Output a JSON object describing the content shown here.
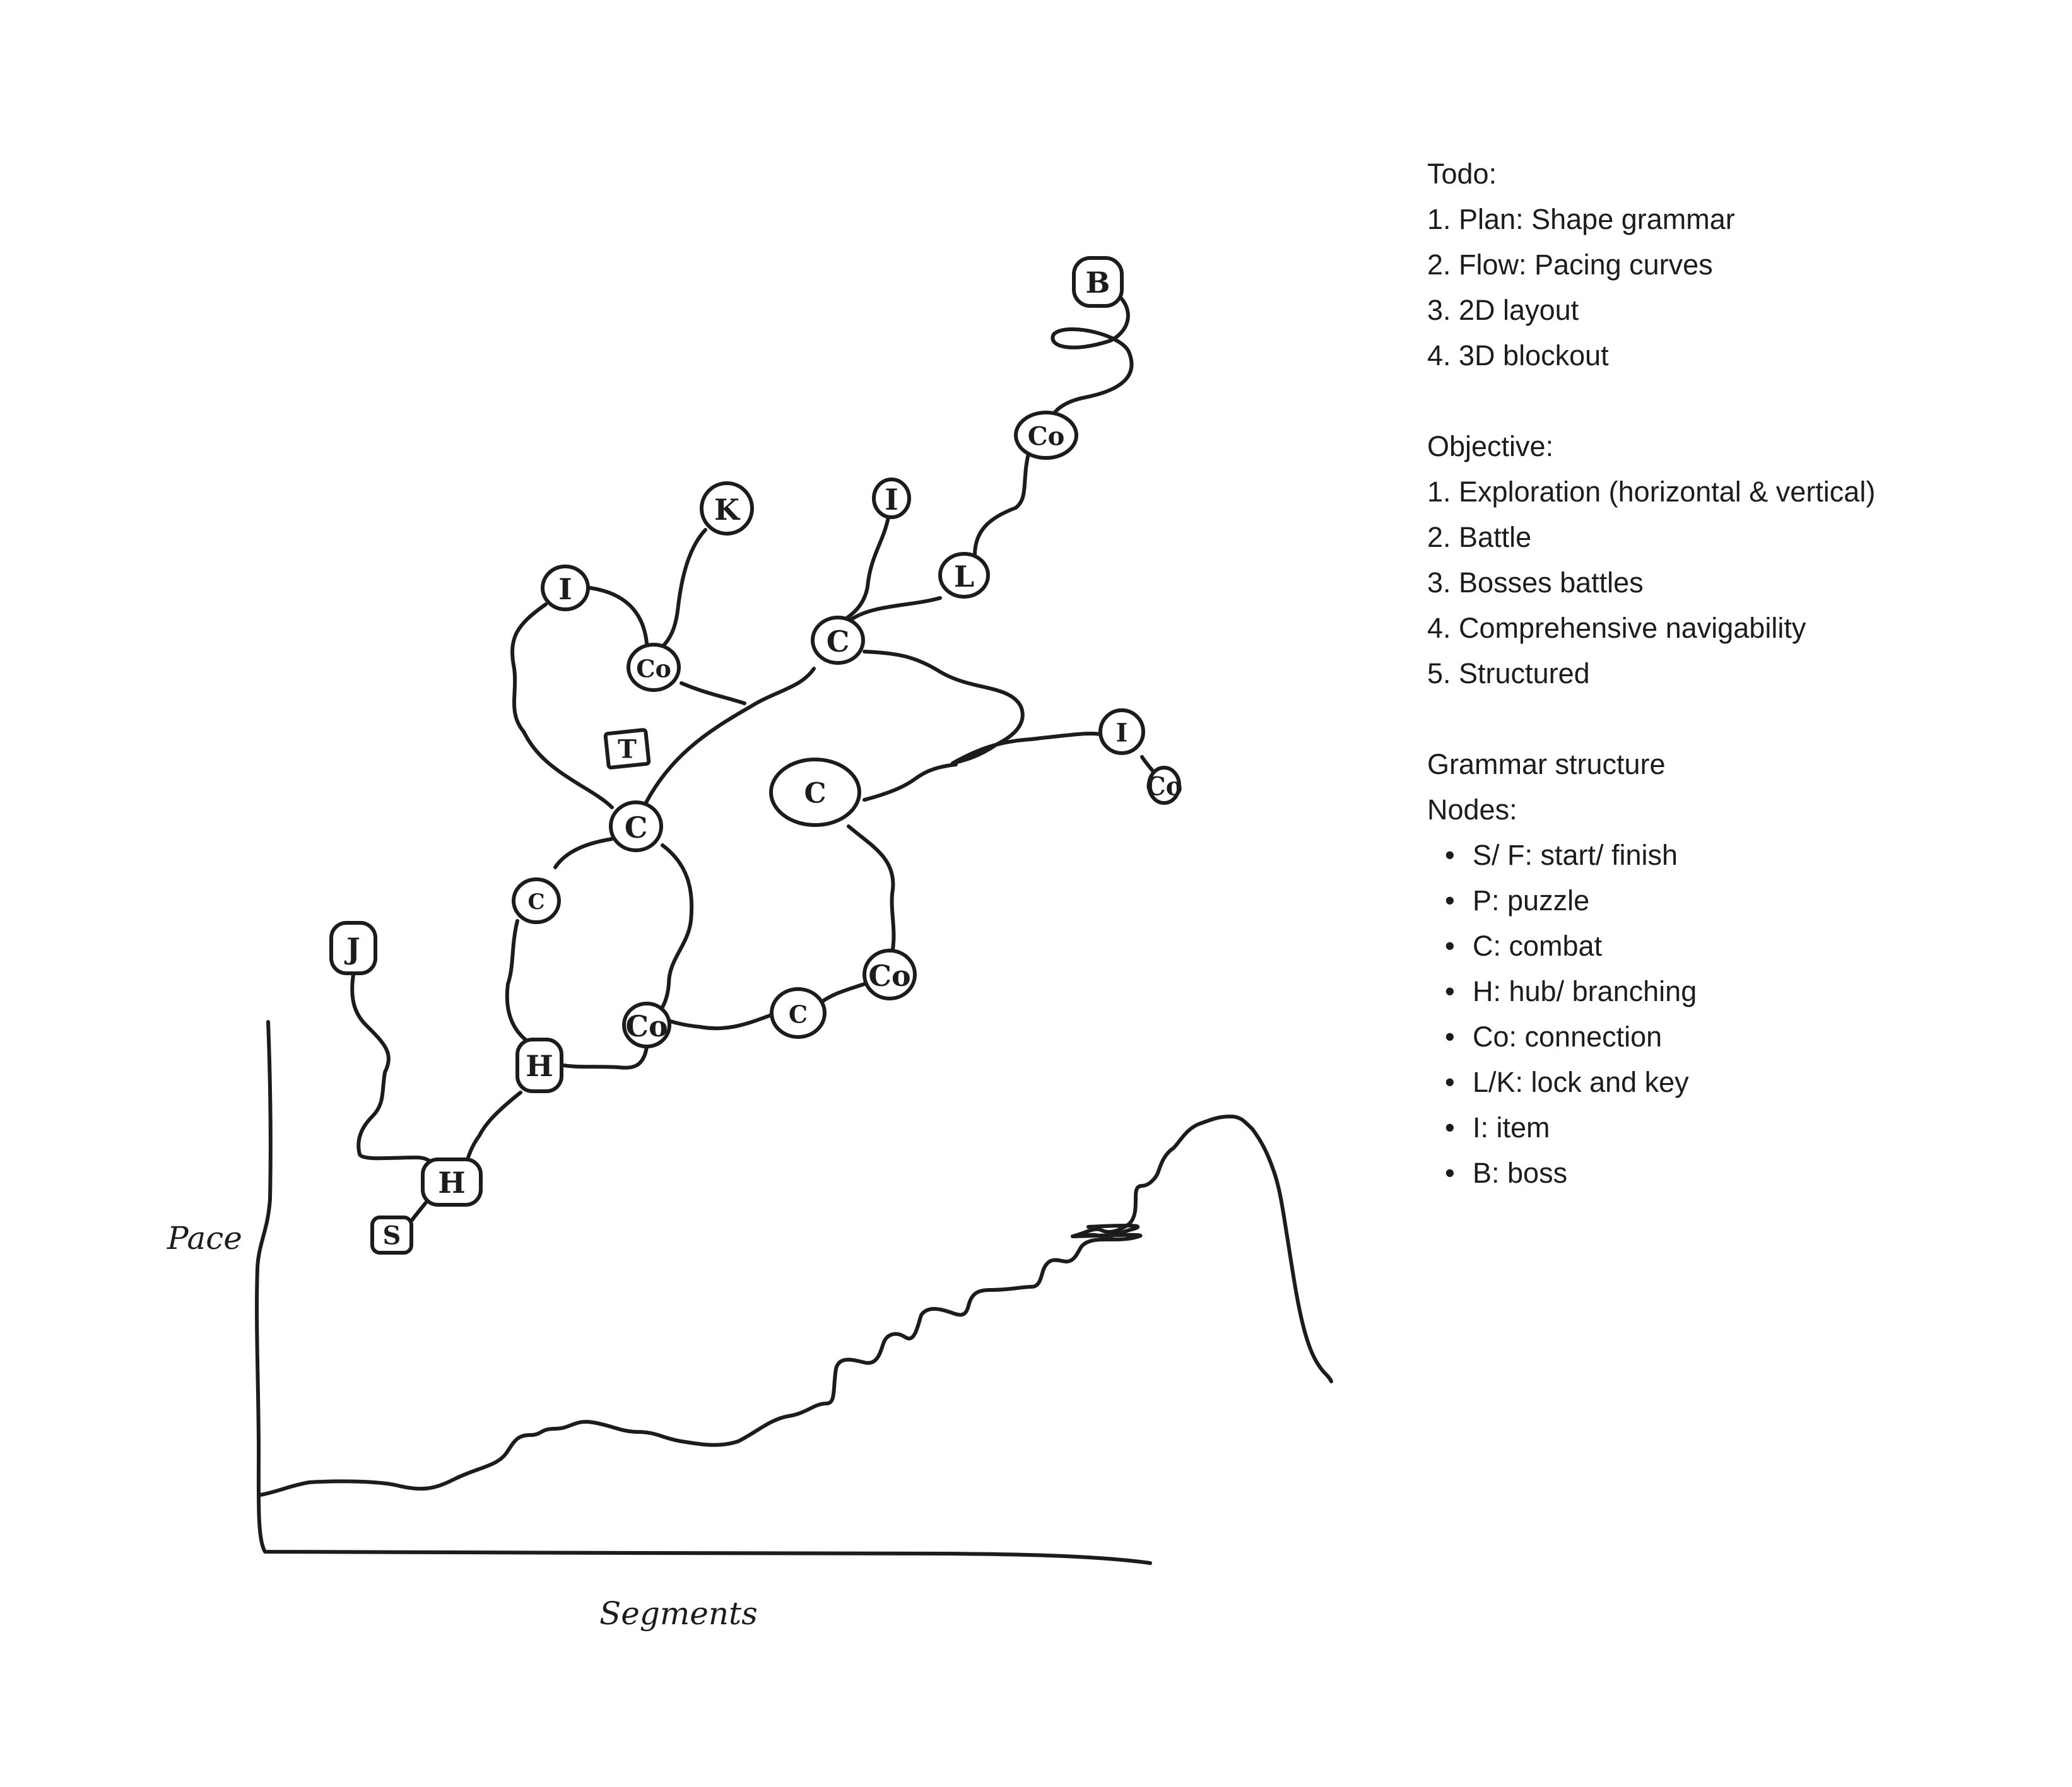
{
  "diagram": {
    "nodes": [
      {
        "id": "b",
        "label": "B"
      },
      {
        "id": "co1",
        "label": "Co"
      },
      {
        "id": "l",
        "label": "L"
      },
      {
        "id": "i1",
        "label": "I"
      },
      {
        "id": "k",
        "label": "K"
      },
      {
        "id": "i2",
        "label": "I"
      },
      {
        "id": "co2",
        "label": "Co"
      },
      {
        "id": "c1",
        "label": "C"
      },
      {
        "id": "t",
        "label": "T"
      },
      {
        "id": "c2",
        "label": "C"
      },
      {
        "id": "i3",
        "label": "I"
      },
      {
        "id": "co3",
        "label": "Co"
      },
      {
        "id": "c3",
        "label": "C"
      },
      {
        "id": "co4",
        "label": "Co"
      },
      {
        "id": "c4",
        "label": "C"
      },
      {
        "id": "co5",
        "label": "Co"
      },
      {
        "id": "c5",
        "label": "C"
      },
      {
        "id": "h1",
        "label": "H"
      },
      {
        "id": "j",
        "label": "J"
      },
      {
        "id": "h2",
        "label": "H"
      },
      {
        "id": "s",
        "label": "S"
      }
    ],
    "pacing": {
      "y_axis_label": "Pace",
      "x_axis_label": "Segments"
    }
  },
  "notes": {
    "todo_title": "Todo:",
    "todo_items": [
      "1. Plan: Shape grammar",
      "2. Flow: Pacing curves",
      "3. 2D layout",
      "4. 3D blockout"
    ],
    "objective_title": "Objective:",
    "objective_items": [
      "1. Exploration (horizontal & vertical)",
      "2. Battle",
      "3. Bosses battles",
      "4. Comprehensive navigability",
      "5. Structured"
    ],
    "grammar_title": "Grammar structure",
    "nodes_title": "Nodes:",
    "node_legend": [
      "S/ F: start/ finish",
      "P: puzzle",
      "C: combat",
      "H: hub/ branching",
      "Co: connection",
      "L/K: lock and key",
      "I: item",
      "B: boss"
    ]
  }
}
